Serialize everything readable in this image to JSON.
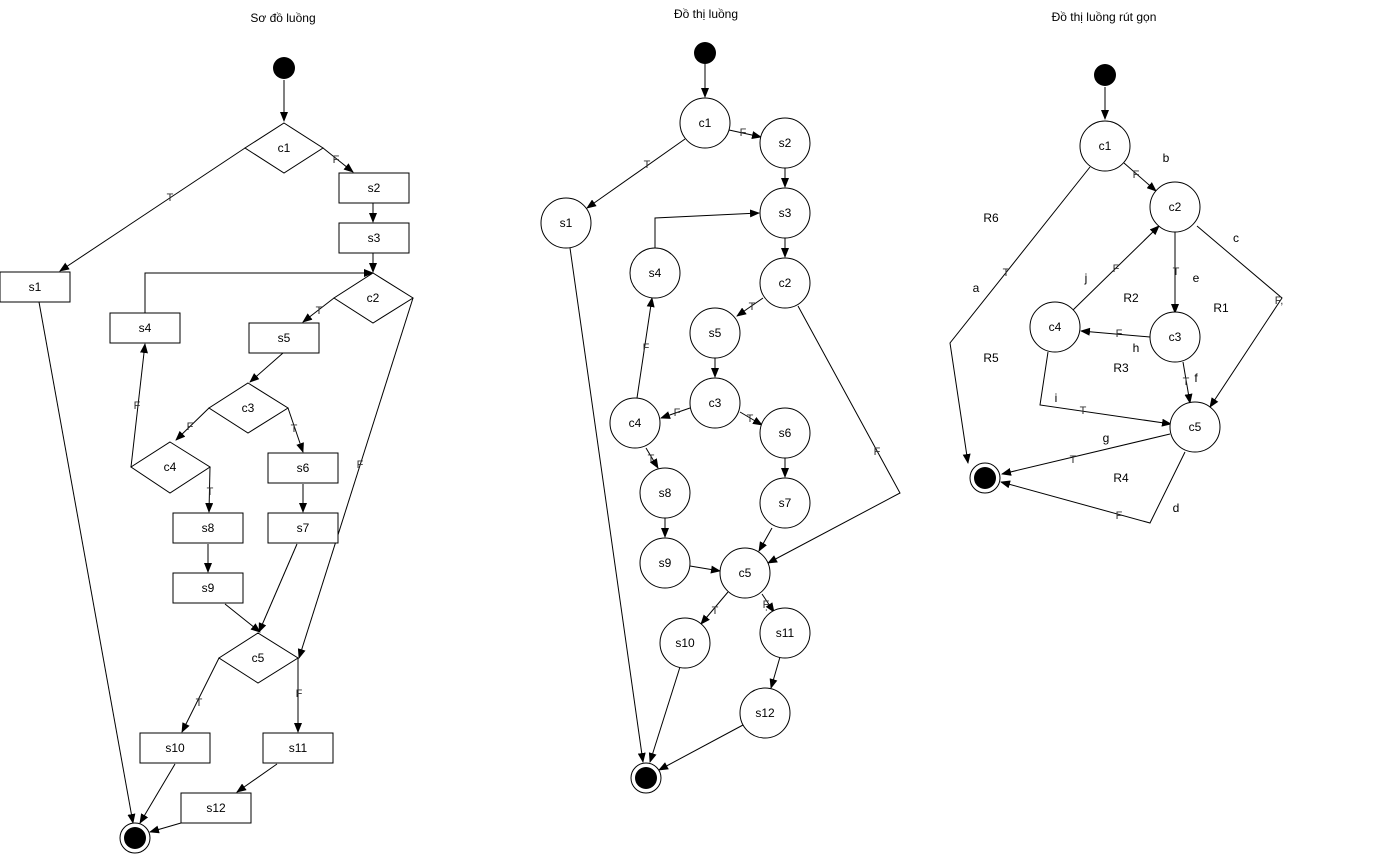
{
  "titles": {
    "flowchart": "Sơ đồ luồng",
    "flowgraph": "Đồ thị luồng",
    "reduced": "Đồ thị luồng rút gọn"
  },
  "labels": {
    "c1": "c1",
    "c2": "c2",
    "c3": "c3",
    "c4": "c4",
    "c5": "c5",
    "s1": "s1",
    "s2": "s2",
    "s3": "s3",
    "s4": "s4",
    "s5": "s5",
    "s6": "s6",
    "s7": "s7",
    "s8": "s8",
    "s9": "s9",
    "s10": "s10",
    "s11": "s11",
    "s12": "s12"
  },
  "edge_labels": {
    "t": "T",
    "f": "F",
    "f_comma": "F,",
    "f_tick": "F̩"
  },
  "reduced_edges": {
    "a": "a",
    "b": "b",
    "c": "c",
    "d": "d",
    "e": "e",
    "f": "f",
    "g": "g",
    "h": "h",
    "i": "i",
    "j": "j"
  },
  "regions": {
    "r1": "R1",
    "r2": "R2",
    "r3": "R3",
    "r4": "R4",
    "r5": "R5",
    "r6": "R6"
  }
}
